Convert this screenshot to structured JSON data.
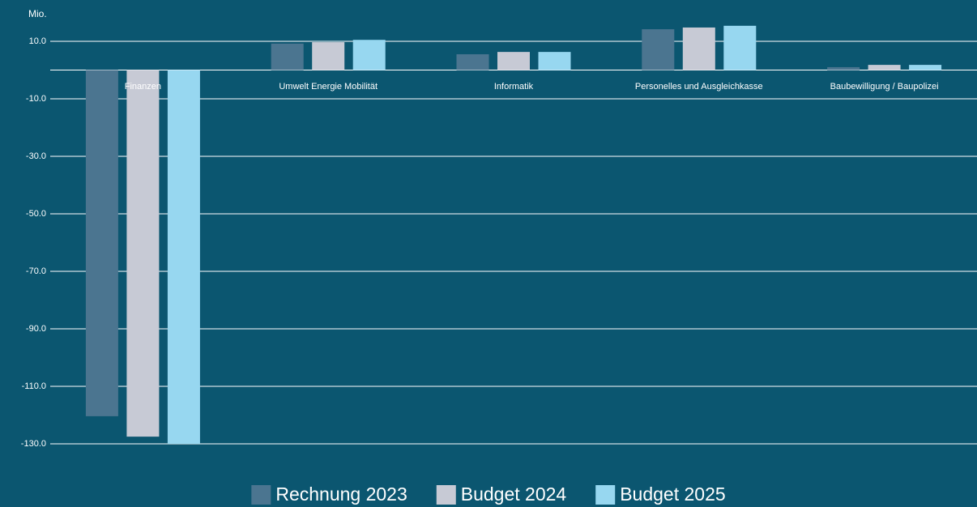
{
  "chart_data": {
    "type": "bar",
    "y_label": "Mio.",
    "categories": [
      "Finanzen",
      "Umwelt Energie Mobilität",
      "Informatik",
      "Personelles und Ausgleichkasse",
      "Baubewilligung / Baupolizei"
    ],
    "series": [
      {
        "name": "Rechnung 2023",
        "color": "#4b7590",
        "values": [
          -120.4,
          9.2,
          5.5,
          14.2,
          1.0
        ]
      },
      {
        "name": "Budget 2024",
        "color": "#c7cad5",
        "values": [
          -127.5,
          9.7,
          6.3,
          14.8,
          1.8
        ]
      },
      {
        "name": "Budget 2025",
        "color": "#97d7f0",
        "values": [
          -130,
          10.5,
          6.3,
          15.4,
          1.8
        ]
      }
    ],
    "ylim": [
      -130,
      16
    ],
    "yticks": [
      {
        "value": 10,
        "label": "10.0"
      },
      {
        "value": -10,
        "label": "-10.0"
      },
      {
        "value": -30,
        "label": "-30.0"
      },
      {
        "value": -50,
        "label": "-50.0"
      },
      {
        "value": -70,
        "label": "-70.0"
      },
      {
        "value": -90,
        "label": "-90.0"
      },
      {
        "value": -110,
        "label": "-110.0"
      },
      {
        "value": -130,
        "label": "-130.0"
      }
    ],
    "grid": true,
    "legend": "bottom"
  }
}
